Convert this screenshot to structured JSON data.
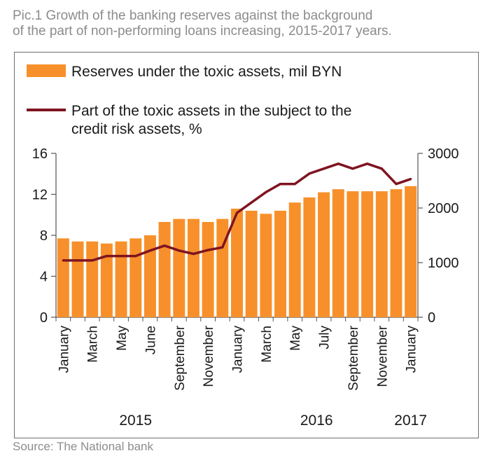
{
  "title_lines": [
    "Pic.1  Growth of the banking reserves against the background",
    "of the part of non-performing loans increasing, 2015-2017 years."
  ],
  "source": "Source: The National bank",
  "colors": {
    "bars": "#f7902a",
    "line": "#7f1420",
    "text": "#1a1a1a",
    "title": "#8c8c8c"
  },
  "chart_data": {
    "type": "bar",
    "legend": {
      "bar_label": "Reserves under the toxic assets, mil BYN",
      "line_label_lines": [
        "Part of the toxic assets in the subject to the",
        "credit risk assets, %"
      ]
    },
    "y_left": {
      "ticks": [
        "0",
        "4",
        "8",
        "12",
        "16"
      ],
      "range": [
        0,
        16
      ]
    },
    "y_right": {
      "ticks": [
        "0",
        "1000",
        "2000",
        "3000"
      ],
      "range": [
        0,
        3000
      ]
    },
    "x_labels": [
      {
        "index": 0,
        "label": "January"
      },
      {
        "index": 2,
        "label": "March"
      },
      {
        "index": 4,
        "label": "May"
      },
      {
        "index": 6,
        "label": "June"
      },
      {
        "index": 8,
        "label": "September"
      },
      {
        "index": 10,
        "label": "November"
      },
      {
        "index": 12,
        "label": "January"
      },
      {
        "index": 14,
        "label": "March"
      },
      {
        "index": 16,
        "label": "May"
      },
      {
        "index": 18,
        "label": "July"
      },
      {
        "index": 20,
        "label": "September"
      },
      {
        "index": 22,
        "label": "November"
      },
      {
        "index": 24,
        "label": "January"
      }
    ],
    "years": [
      {
        "label": "2015",
        "at_index": 5
      },
      {
        "label": "2016",
        "at_index": 17.5
      },
      {
        "label": "2017",
        "at_index": 24
      }
    ],
    "series": [
      {
        "name": "Reserves under the toxic assets, mil BYN",
        "kind": "bar",
        "axis": "left",
        "values": [
          7.7,
          7.4,
          7.4,
          7.2,
          7.4,
          7.7,
          8.0,
          9.3,
          9.6,
          9.6,
          9.3,
          9.6,
          10.6,
          10.4,
          10.1,
          10.4,
          11.2,
          11.7,
          12.2,
          12.5,
          12.3,
          12.3,
          12.3,
          12.5,
          12.8
        ]
      },
      {
        "name": "Part of the toxic assets in the subject to the credit risk assets, %",
        "kind": "line",
        "axis": "right",
        "values": [
          1040,
          1040,
          1040,
          1120,
          1120,
          1120,
          1220,
          1310,
          1220,
          1160,
          1230,
          1280,
          1910,
          2100,
          2290,
          2440,
          2440,
          2630,
          2720,
          2810,
          2720,
          2810,
          2720,
          2440,
          2530
        ]
      }
    ]
  }
}
